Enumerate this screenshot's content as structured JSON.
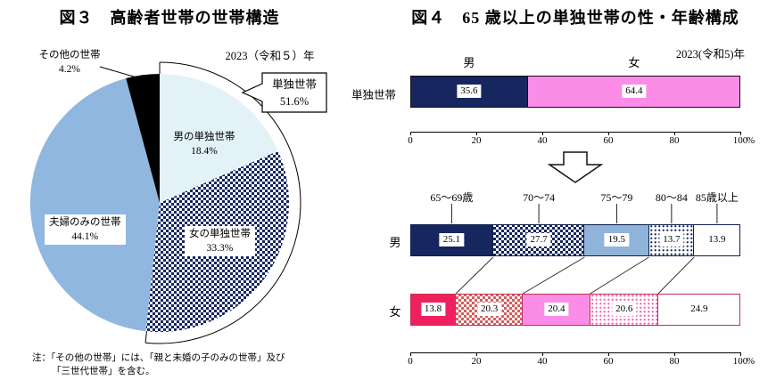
{
  "fig3": {
    "title": "図３　高齢者世帯の世帯構造",
    "year_label": "2023（令和５）年",
    "note_lines": [
      "注：「その他の世帯」には、「親と未婚の子のみの世帯」及び",
      "「三世代世帯」を含む。"
    ]
  },
  "fig4": {
    "title": "図４　65 歳以上の単独世帯の性・年齢構成",
    "year_label": "2023(令和5)年"
  },
  "chart_data": [
    {
      "id": "fig3-pie",
      "type": "pie",
      "title": "高齢者世帯の世帯構造",
      "unit": "%",
      "start_angle_deg": 0,
      "direction": "clockwise",
      "slices": [
        {
          "label": "男の単独世帯",
          "pct": "18.4%",
          "value": 18.4,
          "color": "#e3f2f6",
          "pattern": null
        },
        {
          "label": "女の単独世帯",
          "pct": "33.3%",
          "value": 33.3,
          "color": "#16265e",
          "pattern": "navy-check"
        },
        {
          "label": "夫婦のみの世帯",
          "pct": "44.1%",
          "value": 44.1,
          "color": "#8fb7e0",
          "pattern": null
        },
        {
          "label": "その他の世帯",
          "pct": "4.2%",
          "value": 4.2,
          "color": "#000000",
          "pattern": null
        }
      ],
      "ring": {
        "label": "単独世帯",
        "pct": "51.6%",
        "value": 51.6
      }
    },
    {
      "id": "fig4-total",
      "type": "bar",
      "stacked": true,
      "orientation": "horizontal",
      "row_label": "単独世帯",
      "segments": [
        {
          "label": "男",
          "value": 35.6,
          "style": "navy"
        },
        {
          "label": "女",
          "value": 64.4,
          "style": "pink"
        }
      ],
      "x_ticks": [
        0,
        20,
        40,
        60,
        80,
        100
      ],
      "unit": "%"
    },
    {
      "id": "fig4-age",
      "type": "bar",
      "stacked": true,
      "orientation": "horizontal",
      "categories": [
        "65～69歳",
        "70～74",
        "75～79",
        "80～84",
        "85歳以上"
      ],
      "rows": [
        {
          "label": "男",
          "values": [
            25.1,
            27.7,
            19.5,
            13.7,
            13.9
          ],
          "styles": [
            "navy",
            "navy-check",
            "mid-blue",
            "navy-dots",
            "white"
          ]
        },
        {
          "label": "女",
          "values": [
            13.8,
            20.3,
            20.4,
            20.6,
            24.9
          ],
          "styles": [
            "crimson",
            "red-check",
            "pink",
            "pink-dots",
            "white"
          ]
        }
      ],
      "x_ticks": [
        0,
        20,
        40,
        60,
        80,
        100
      ],
      "unit": "%"
    }
  ]
}
